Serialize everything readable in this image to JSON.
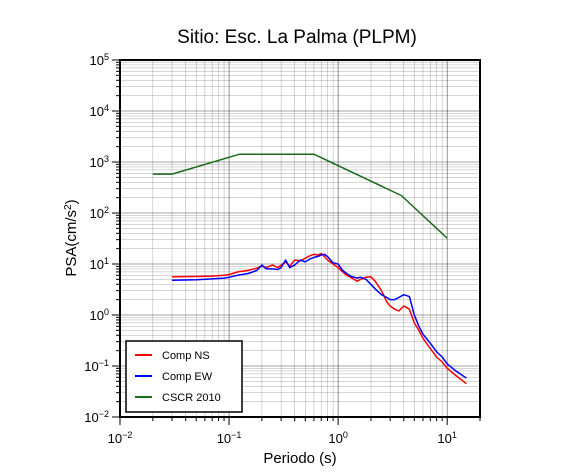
{
  "chart_data": {
    "type": "line",
    "title": "Sitio: Esc. La Palma (PLPM)",
    "xlabel": "Periodo (s)",
    "ylabel_base": "PSA(cm/s",
    "ylabel_sup": "2",
    "ylabel_tail": ")",
    "x_scale": "log",
    "y_scale": "log",
    "xlim": [
      0.01,
      20
    ],
    "ylim": [
      0.01,
      100000
    ],
    "grid": true,
    "legend_position": "bottom-left",
    "x_tick_labels": [
      {
        "value": 0.01,
        "base": "10",
        "exp": "−2"
      },
      {
        "value": 0.1,
        "base": "10",
        "exp": "−1"
      },
      {
        "value": 1,
        "base": "10",
        "exp": "0"
      },
      {
        "value": 10,
        "base": "10",
        "exp": "1"
      }
    ],
    "y_tick_labels": [
      {
        "value": 0.01,
        "base": "10",
        "exp": "−2"
      },
      {
        "value": 0.1,
        "base": "10",
        "exp": "−1"
      },
      {
        "value": 1,
        "base": "10",
        "exp": "0"
      },
      {
        "value": 10,
        "base": "10",
        "exp": "1"
      },
      {
        "value": 100,
        "base": "10",
        "exp": "2"
      },
      {
        "value": 1000,
        "base": "10",
        "exp": "3"
      },
      {
        "value": 10000,
        "base": "10",
        "exp": "4"
      },
      {
        "value": 100000,
        "base": "10",
        "exp": "5"
      }
    ],
    "series": [
      {
        "name": "Comp NS",
        "color": "#ff0000",
        "x": [
          0.03,
          0.05,
          0.07,
          0.09,
          0.1,
          0.12,
          0.15,
          0.18,
          0.2,
          0.22,
          0.25,
          0.28,
          0.3,
          0.33,
          0.36,
          0.4,
          0.45,
          0.5,
          0.55,
          0.6,
          0.65,
          0.7,
          0.75,
          0.8,
          0.9,
          1.0,
          1.1,
          1.2,
          1.3,
          1.4,
          1.5,
          1.6,
          1.8,
          2.0,
          2.2,
          2.5,
          2.8,
          3.0,
          3.3,
          3.6,
          4.0,
          4.5,
          5.0,
          5.5,
          6.0,
          7.0,
          8.0,
          9.0,
          10.0,
          12.0,
          15.0
        ],
        "y": [
          5.6,
          5.7,
          5.8,
          6.0,
          6.2,
          7.0,
          7.5,
          8.3,
          9.0,
          8.5,
          9.5,
          8.5,
          9.5,
          11.0,
          9.0,
          12.0,
          11.5,
          13.0,
          14.5,
          15.5,
          15.0,
          16.0,
          14.0,
          12.0,
          10.0,
          8.5,
          7.0,
          6.0,
          5.5,
          5.0,
          4.6,
          5.0,
          5.5,
          5.6,
          4.5,
          3.0,
          1.8,
          1.5,
          1.3,
          1.2,
          1.5,
          1.3,
          0.7,
          0.5,
          0.35,
          0.22,
          0.15,
          0.12,
          0.09,
          0.065,
          0.045
        ]
      },
      {
        "name": "Comp EW",
        "color": "#0000ff",
        "x": [
          0.03,
          0.05,
          0.07,
          0.09,
          0.1,
          0.12,
          0.15,
          0.18,
          0.2,
          0.22,
          0.25,
          0.28,
          0.3,
          0.33,
          0.36,
          0.4,
          0.45,
          0.5,
          0.55,
          0.6,
          0.65,
          0.7,
          0.75,
          0.8,
          0.9,
          1.0,
          1.1,
          1.2,
          1.3,
          1.4,
          1.5,
          1.6,
          1.8,
          2.0,
          2.2,
          2.5,
          2.8,
          3.0,
          3.3,
          3.6,
          4.0,
          4.5,
          5.0,
          5.5,
          6.0,
          7.0,
          8.0,
          9.0,
          10.0,
          12.0,
          15.0
        ],
        "y": [
          4.8,
          4.9,
          5.1,
          5.3,
          5.5,
          6.0,
          6.5,
          7.5,
          9.5,
          8.0,
          8.0,
          7.8,
          8.5,
          12.0,
          8.5,
          9.5,
          12.0,
          11.0,
          12.5,
          13.5,
          14.0,
          15.0,
          15.5,
          14.0,
          10.5,
          10.0,
          7.5,
          6.5,
          5.8,
          5.5,
          5.3,
          5.5,
          5.0,
          4.0,
          3.2,
          2.5,
          2.2,
          2.0,
          2.0,
          2.2,
          2.5,
          2.3,
          1.0,
          0.6,
          0.42,
          0.28,
          0.19,
          0.15,
          0.11,
          0.08,
          0.058
        ]
      },
      {
        "name": "CSCR 2010",
        "color": "#1a6b1a",
        "x": [
          0.02,
          0.03,
          0.125,
          0.6,
          3.8,
          10.0
        ],
        "y": [
          580,
          580,
          1420,
          1420,
          220,
          32
        ]
      }
    ]
  }
}
